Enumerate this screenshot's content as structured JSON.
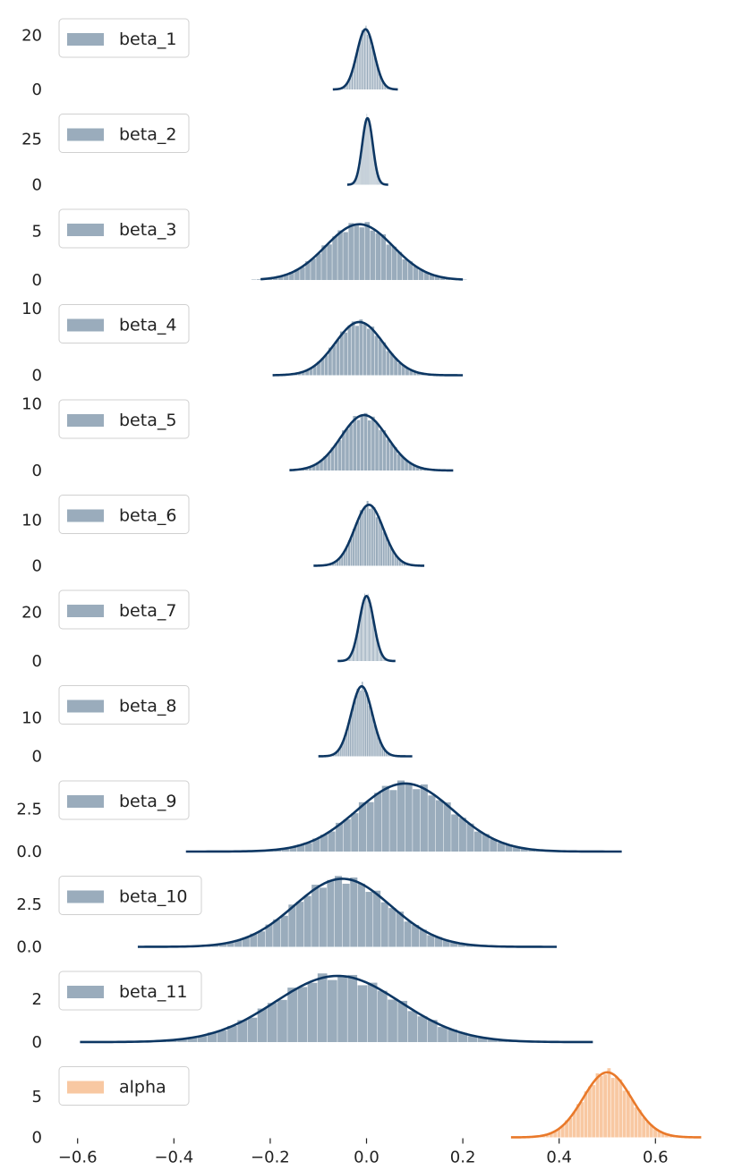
{
  "chart_data": {
    "type": "histogram-kde-stack",
    "x_ticks": [
      "−0.6",
      "−0.4",
      "−0.2",
      "0.0",
      "0.2",
      "0.4",
      "0.6"
    ],
    "x_tick_values": [
      -0.6,
      -0.4,
      -0.2,
      0.0,
      0.2,
      0.4,
      0.6
    ],
    "xlim": [
      -0.65,
      0.7
    ],
    "panels": [
      {
        "label": "beta_1",
        "mean": -0.002,
        "sd": 0.018,
        "range": [
          -0.07,
          0.065
        ],
        "ymax": 27,
        "y_ticks": [
          "0",
          "20"
        ],
        "y_tick_values": [
          0,
          20
        ],
        "color": "#0d3763",
        "hist_color": "#9aacbc"
      },
      {
        "label": "beta_2",
        "mean": 0.002,
        "sd": 0.011,
        "range": [
          -0.04,
          0.045
        ],
        "ymax": 40,
        "y_ticks": [
          "0",
          "25"
        ],
        "y_tick_values": [
          0,
          25
        ],
        "color": "#0d3763",
        "hist_color": "#9aacbc"
      },
      {
        "label": "beta_3",
        "mean": -0.015,
        "sd": 0.07,
        "range": [
          -0.22,
          0.2
        ],
        "ymax": 7.5,
        "y_ticks": [
          "0",
          "5"
        ],
        "y_tick_values": [
          0,
          5
        ],
        "color": "#0d3763",
        "hist_color": "#9aacbc"
      },
      {
        "label": "beta_4",
        "mean": -0.015,
        "sd": 0.05,
        "range": [
          -0.195,
          0.2
        ],
        "ymax": 11,
        "y_ticks": [
          "0",
          "10"
        ],
        "y_tick_values": [
          0,
          10
        ],
        "color": "#0d3763",
        "hist_color": "#9aacbc"
      },
      {
        "label": "beta_5",
        "mean": -0.005,
        "sd": 0.048,
        "range": [
          -0.16,
          0.18
        ],
        "ymax": 11,
        "y_ticks": [
          "0",
          "10"
        ],
        "y_tick_values": [
          0,
          10
        ],
        "color": "#0d3763",
        "hist_color": "#9aacbc"
      },
      {
        "label": "beta_6",
        "mean": 0.005,
        "sd": 0.03,
        "range": [
          -0.11,
          0.12
        ],
        "ymax": 16,
        "y_ticks": [
          "0",
          "10"
        ],
        "y_tick_values": [
          0,
          10
        ],
        "color": "#0d3763",
        "hist_color": "#9aacbc"
      },
      {
        "label": "beta_7",
        "mean": 0.0,
        "sd": 0.015,
        "range": [
          -0.06,
          0.06
        ],
        "ymax": 30,
        "y_ticks": [
          "0",
          "20"
        ],
        "y_tick_values": [
          0,
          20
        ],
        "color": "#0d3763",
        "hist_color": "#9aacbc"
      },
      {
        "label": "beta_8",
        "mean": -0.01,
        "sd": 0.022,
        "range": [
          -0.1,
          0.095
        ],
        "ymax": 19,
        "y_ticks": [
          "0",
          "10"
        ],
        "y_tick_values": [
          0,
          10
        ],
        "color": "#0d3763",
        "hist_color": "#9aacbc"
      },
      {
        "label": "beta_9",
        "mean": 0.08,
        "sd": 0.1,
        "range": [
          -0.375,
          0.53
        ],
        "ymax": 4.3,
        "y_ticks": [
          "0.0",
          "2.5"
        ],
        "y_tick_values": [
          0,
          2.5
        ],
        "color": "#0d3763",
        "hist_color": "#9aacbc"
      },
      {
        "label": "beta_10",
        "mean": -0.05,
        "sd": 0.1,
        "range": [
          -0.475,
          0.395
        ],
        "ymax": 4.3,
        "y_ticks": [
          "0.0",
          "2.5"
        ],
        "y_tick_values": [
          0,
          2.5
        ],
        "color": "#0d3763",
        "hist_color": "#9aacbc"
      },
      {
        "label": "beta_11",
        "mean": -0.06,
        "sd": 0.13,
        "range": [
          -0.595,
          0.47
        ],
        "ymax": 3.4,
        "y_ticks": [
          "0",
          "2"
        ],
        "y_tick_values": [
          0,
          2
        ],
        "color": "#0d3763",
        "hist_color": "#9aacbc"
      },
      {
        "label": "alpha",
        "mean": 0.5,
        "sd": 0.05,
        "range": [
          0.3,
          0.695
        ],
        "ymax": 9,
        "y_ticks": [
          "0",
          "5"
        ],
        "y_tick_values": [
          0,
          5
        ],
        "color": "#e9792a",
        "hist_color": "#f8c8a2"
      }
    ]
  }
}
